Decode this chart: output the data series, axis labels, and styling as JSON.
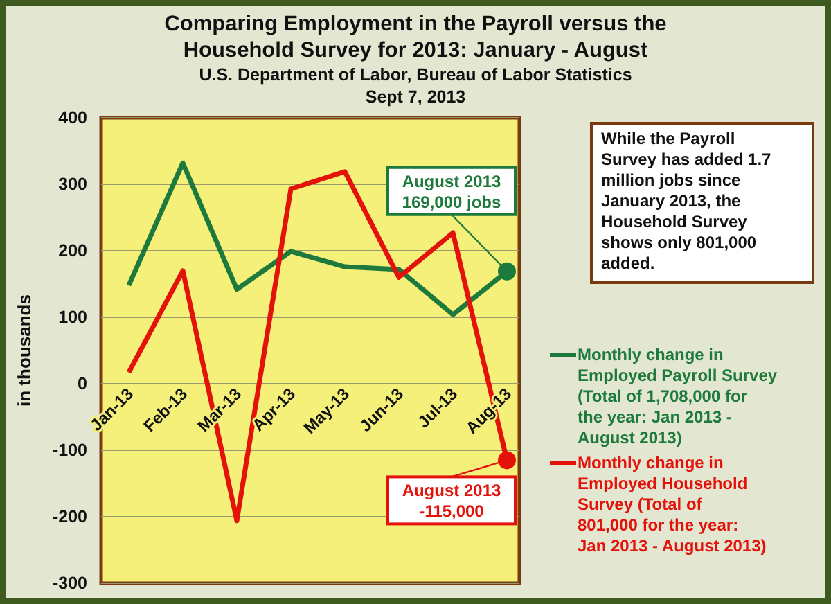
{
  "chart_data": {
    "type": "line",
    "title": "Comparing Employment in the Payroll versus the\nHousehold Survey for 2013: January - August",
    "subtitle": "U.S. Department of Labor, Bureau of Labor Statistics\nSept 7, 2013",
    "ylabel": "in thousands",
    "categories": [
      "Jan-13",
      "Feb-13",
      "Mar-13",
      "Apr-13",
      "May-13",
      "Jun-13",
      "Jul-13",
      "Aug-13"
    ],
    "series": [
      {
        "name": "Monthly change in Employed Payroll Survey (Total of 1,708,000 for the year: Jan 2013 - August 2013)",
        "color": "#1e7a3c",
        "values": [
          148,
          332,
          142,
          199,
          176,
          172,
          104,
          169
        ]
      },
      {
        "name": "Monthly change in Employed Household Survey (Total of 801,000 for the year: Jan 2013 - August 2013)",
        "color": "#e3120b",
        "values": [
          17,
          170,
          -206,
          293,
          319,
          160,
          227,
          -115
        ]
      }
    ],
    "ylim": [
      -300,
      400
    ],
    "yticks": [
      -300,
      -200,
      -100,
      0,
      100,
      200,
      300,
      400
    ],
    "grid": "y",
    "legend": "right",
    "marker": "none",
    "line_style": "solid",
    "annotations": [
      {
        "text": "August 2013\n169,000 jobs",
        "x": "Aug-13",
        "y": 169
      },
      {
        "text": "August 2013\n-115,000",
        "x": "Aug-13",
        "y": -115
      },
      "While the Payroll Survey has added 1.7 million jobs since January 2013, the Household Survey shows only 801,000 added."
    ]
  }
}
